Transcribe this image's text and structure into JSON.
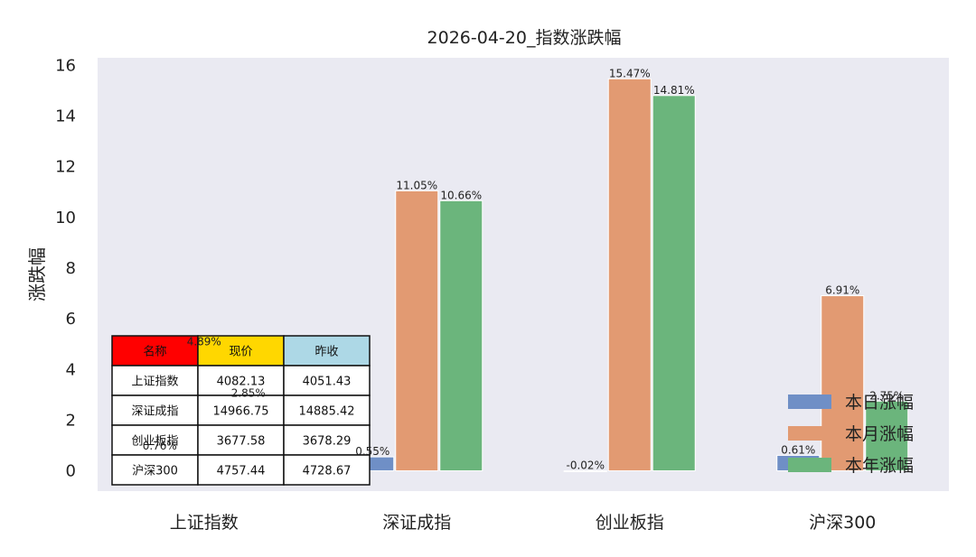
{
  "chart_data": {
    "type": "bar",
    "title": "2026-04-20_指数涨跌幅",
    "ylabel": "涨跌幅",
    "xlabel": "",
    "ylim": [
      -0.8,
      16.3
    ],
    "yticks": [
      0,
      2,
      4,
      6,
      8,
      10,
      12,
      14,
      16
    ],
    "categories": [
      "上证指数",
      "深证成指",
      "创业板指",
      "沪深300"
    ],
    "series": [
      {
        "name": "本日涨幅",
        "color": "#6f8fc6",
        "values": [
          0.76,
          0.55,
          -0.02,
          0.61
        ],
        "labels": [
          "0.76%",
          "0.55%",
          "-0.02%",
          "0.61%"
        ]
      },
      {
        "name": "本月涨幅",
        "color": "#e29a72",
        "values": [
          4.89,
          11.05,
          15.47,
          6.91
        ],
        "labels": [
          "4.89%",
          "11.05%",
          "15.47%",
          "6.91%"
        ]
      },
      {
        "name": "本年涨幅",
        "color": "#6bb57c",
        "values": [
          2.85,
          10.66,
          14.81,
          2.75
        ],
        "labels": [
          "2.85%",
          "10.66%",
          "14.81%",
          "2.75%"
        ]
      }
    ],
    "grid": false,
    "legend": "bottom-right",
    "table": {
      "headers": [
        "名称",
        "现价",
        "昨收"
      ],
      "header_colors": [
        "#ff0000",
        "#ffd700",
        "#add8e6"
      ],
      "rows": [
        [
          "上证指数",
          "4082.13",
          "4051.43"
        ],
        [
          "深证成指",
          "14966.75",
          "14885.42"
        ],
        [
          "创业板指",
          "3677.58",
          "3678.29"
        ],
        [
          "沪深300",
          "4757.44",
          "4728.67"
        ]
      ]
    }
  }
}
